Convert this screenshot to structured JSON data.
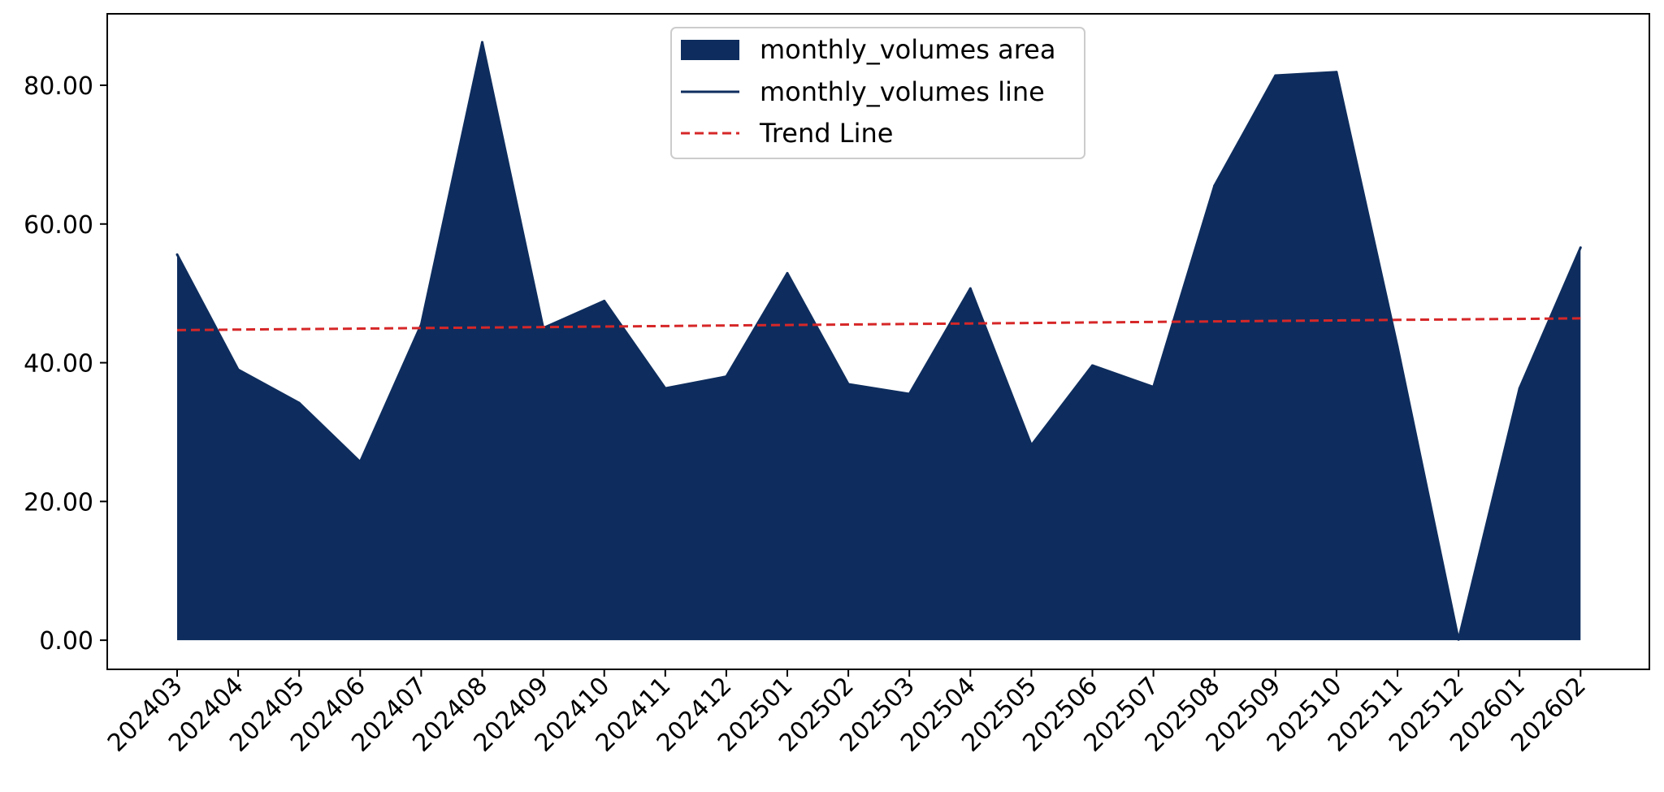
{
  "chart_data": {
    "type": "area",
    "categories": [
      "202403",
      "202404",
      "202405",
      "202406",
      "202407",
      "202408",
      "202409",
      "202410",
      "202411",
      "202412",
      "202501",
      "202502",
      "202503",
      "202504",
      "202505",
      "202506",
      "202507",
      "202508",
      "202509",
      "202510",
      "202511",
      "202512",
      "202601",
      "202602"
    ],
    "series": [
      {
        "name": "monthly_volumes area",
        "kind": "area",
        "values": [
          55.6,
          39.0,
          34.2,
          25.7,
          45.5,
          86.2,
          45.0,
          48.9,
          36.3,
          38.0,
          52.9,
          36.9,
          35.5,
          50.7,
          28.1,
          39.6,
          36.5,
          65.5,
          81.4,
          81.9,
          42.3,
          0.1,
          36.3,
          56.6
        ],
        "color": "#0e2d5e"
      },
      {
        "name": "monthly_volumes line",
        "kind": "line",
        "values": [
          55.6,
          39.0,
          34.2,
          25.7,
          45.5,
          86.2,
          45.0,
          48.9,
          36.3,
          38.0,
          52.9,
          36.9,
          35.5,
          50.7,
          28.1,
          39.6,
          36.5,
          65.5,
          81.4,
          81.9,
          42.3,
          0.1,
          36.3,
          56.6
        ],
        "color": "#0e2d5e"
      },
      {
        "name": "Trend Line",
        "kind": "trend",
        "values": [
          44.7,
          44.78,
          44.85,
          44.92,
          45.0,
          45.07,
          45.14,
          45.22,
          45.29,
          45.37,
          45.44,
          45.51,
          45.59,
          45.66,
          45.73,
          45.81,
          45.88,
          45.96,
          46.03,
          46.1,
          46.18,
          46.25,
          46.32,
          46.4
        ],
        "color": "#d62728"
      }
    ],
    "y_ticks": [
      0,
      20,
      40,
      60,
      80
    ],
    "y_tick_labels": [
      "0.00",
      "20.00",
      "40.00",
      "60.00",
      "80.00"
    ],
    "ylim": [
      -4.2,
      90.3
    ],
    "title": "",
    "xlabel": "",
    "ylabel": "",
    "grid": false,
    "legend": {
      "position": "top-center",
      "entries": [
        "monthly_volumes area",
        "monthly_volumes line",
        "Trend Line"
      ]
    }
  }
}
